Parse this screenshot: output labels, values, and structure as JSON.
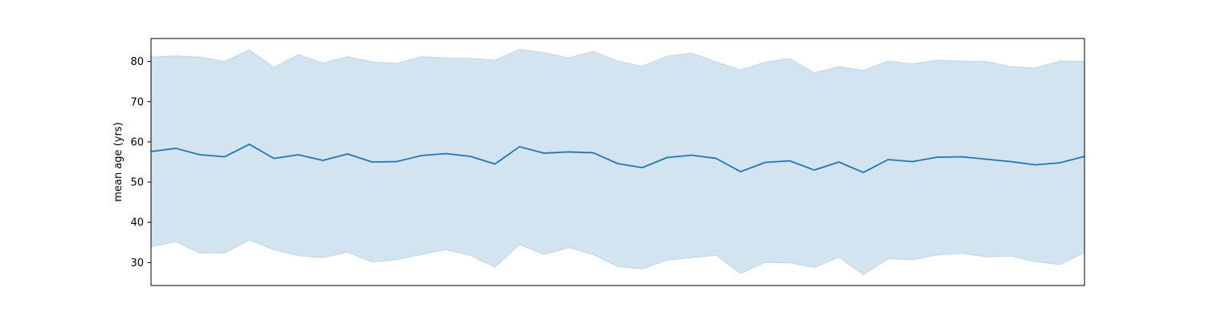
{
  "chart_data": {
    "type": "line",
    "ylabel": "mean age (yrs)",
    "ylim": [
      24.3,
      85.7
    ],
    "yticks": [
      30,
      40,
      50,
      60,
      70,
      80
    ],
    "xticks": [],
    "grid": false,
    "x": [
      0,
      1,
      2,
      3,
      4,
      5,
      6,
      7,
      8,
      9,
      10,
      11,
      12,
      13,
      14,
      15,
      16,
      17,
      18,
      19,
      20,
      21,
      22,
      23,
      24,
      25,
      26,
      27,
      28,
      29,
      30,
      31,
      32,
      33,
      34,
      35,
      36,
      37,
      38
    ],
    "series": [
      {
        "values": [
          57.6,
          58.4,
          56.8,
          56.3,
          59.4,
          55.9,
          56.8,
          55.4,
          57.0,
          55.0,
          55.1,
          56.6,
          57.1,
          56.4,
          54.5,
          58.8,
          57.2,
          57.5,
          57.3,
          54.6,
          53.6,
          56.1,
          56.7,
          55.9,
          52.6,
          54.9,
          55.3,
          53.0,
          55.0,
          52.4,
          55.6,
          55.1,
          56.2,
          56.3,
          55.7,
          55.1,
          54.3,
          54.8,
          56.4
        ],
        "lower": [
          33.9,
          35.2,
          32.3,
          32.4,
          35.6,
          33.2,
          31.7,
          31.2,
          32.6,
          30.1,
          30.7,
          32.0,
          33.2,
          31.8,
          28.8,
          34.5,
          32.0,
          33.7,
          32.0,
          29.0,
          28.4,
          30.6,
          31.2,
          31.8,
          27.3,
          30.0,
          29.9,
          28.8,
          31.3,
          27.0,
          30.9,
          30.7,
          31.9,
          32.3,
          31.4,
          31.6,
          30.2,
          29.5,
          32.4
        ],
        "upper": [
          81.1,
          81.4,
          81.1,
          80.0,
          82.9,
          78.5,
          81.7,
          79.6,
          81.2,
          79.9,
          79.5,
          81.2,
          80.9,
          80.8,
          80.3,
          83.0,
          82.2,
          80.9,
          82.5,
          80.1,
          78.8,
          81.3,
          82.1,
          79.9,
          77.9,
          79.8,
          80.7,
          77.2,
          78.7,
          77.8,
          80.1,
          79.4,
          80.3,
          80.1,
          80.0,
          78.7,
          78.4,
          80.1,
          80.0
        ],
        "line_color": "#1f77b4",
        "band_color": "#1f77b4"
      }
    ]
  }
}
